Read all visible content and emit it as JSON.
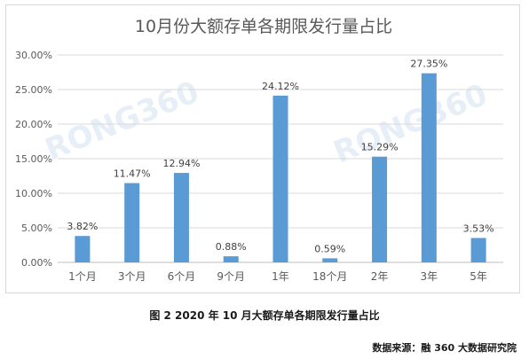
{
  "chart_data": {
    "type": "bar",
    "title": "10月份大额存单各期限发行量占比",
    "categories": [
      "1个月",
      "3个月",
      "6个月",
      "9个月",
      "1年",
      "18个月",
      "2年",
      "3年",
      "5年"
    ],
    "values": [
      3.82,
      11.47,
      12.94,
      0.88,
      24.12,
      0.59,
      15.29,
      27.35,
      3.53
    ],
    "data_labels": [
      "3.82%",
      "11.47%",
      "12.94%",
      "0.88%",
      "24.12%",
      "0.59%",
      "15.29%",
      "27.35%",
      "3.53%"
    ],
    "y_ticks": [
      "0.00%",
      "5.00%",
      "10.00%",
      "15.00%",
      "20.00%",
      "25.00%",
      "30.00%"
    ],
    "ylim": [
      0,
      30
    ],
    "xlabel": "",
    "ylabel": "",
    "bar_color": "#5b9bd5",
    "grid": true,
    "legend": "none",
    "watermark": "RONG360"
  },
  "caption": "图 2  2020 年 10 月大额存单各期限发行量占比",
  "source": "数据来源：融 360 大数据研究院"
}
